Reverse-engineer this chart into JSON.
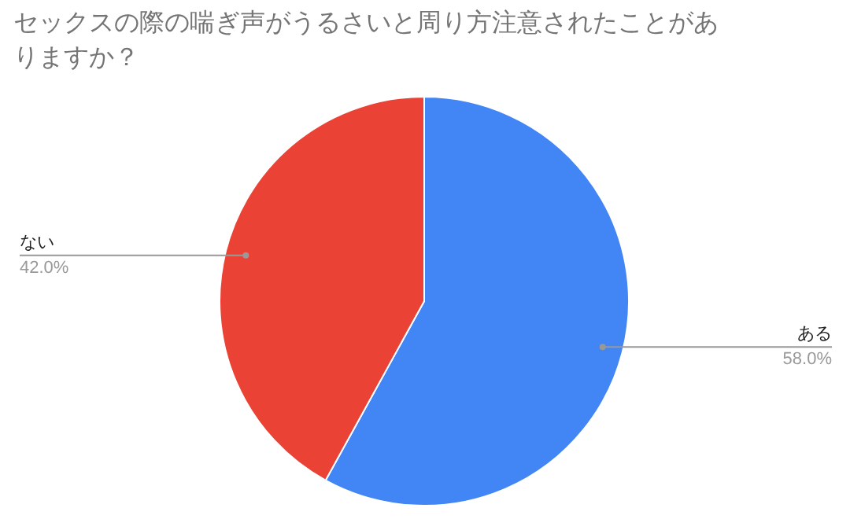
{
  "chart_data": {
    "type": "pie",
    "title": "セックスの際の喘ぎ声がうるさいと周り方注意されたことがありますか？",
    "categories": [
      "ある",
      "ない"
    ],
    "values": [
      58.0,
      42.0
    ],
    "value_labels": [
      "58.0%",
      "42.0%"
    ],
    "colors": [
      "#4285f4",
      "#ea4335"
    ]
  }
}
